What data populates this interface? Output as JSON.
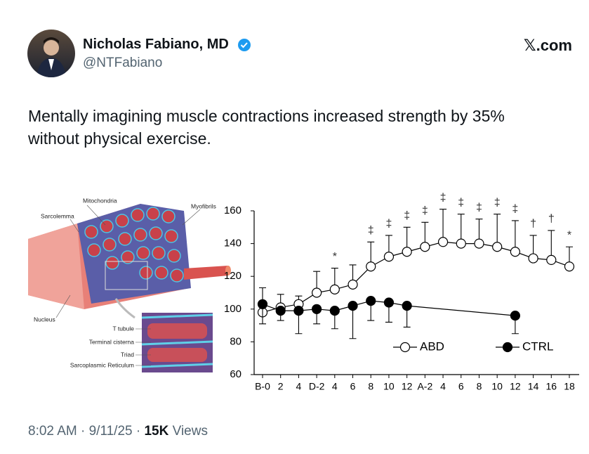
{
  "header": {
    "name": "Nicholas Fabiano, MD",
    "handle": "@NTFabiano",
    "brand": "𝕏.com"
  },
  "post": {
    "text_lines": [
      "Mentally imagining muscle contractions increased strength by 35%",
      "without physical exercise."
    ]
  },
  "illustration": {
    "labels": [
      "Mitochondria",
      "Sarcolemma",
      "Myofibrils",
      "Nucleus",
      "T tubule",
      "Terminal cisterna",
      "Triad",
      "Sarcoplasmic Reticulum"
    ]
  },
  "chart_data": {
    "type": "line",
    "categories": [
      "B-0",
      "2",
      "4",
      "D-2",
      "4",
      "6",
      "8",
      "10",
      "12",
      "A-2",
      "4",
      "6",
      "8",
      "10",
      "12",
      "14",
      "16",
      "18"
    ],
    "ylim": [
      60,
      160
    ],
    "yticks": [
      60,
      80,
      100,
      120,
      140,
      160
    ],
    "series": [
      {
        "name": "ABD",
        "color": "#000000",
        "marker": "open",
        "values": [
          98,
          101,
          103,
          110,
          112,
          115,
          126,
          132,
          135,
          138,
          141,
          140,
          140,
          138,
          135,
          131,
          130,
          126
        ],
        "errors": [
          15,
          8,
          5,
          13,
          13,
          12,
          15,
          13,
          15,
          15,
          20,
          18,
          15,
          20,
          19,
          14,
          18,
          12
        ]
      },
      {
        "name": "CTRL",
        "color": "#000000",
        "marker": "filled",
        "values": [
          103,
          99,
          99,
          100,
          99,
          102,
          105,
          104,
          102,
          null,
          null,
          null,
          null,
          null,
          96,
          null,
          null,
          null
        ],
        "errors": [
          12,
          6,
          14,
          9,
          11,
          20,
          12,
          12,
          13,
          null,
          null,
          null,
          null,
          null,
          11,
          null,
          null,
          null
        ]
      }
    ],
    "annotations": [
      null,
      null,
      null,
      null,
      "*",
      null,
      "‡",
      "‡",
      "‡",
      "‡",
      "‡",
      "‡",
      "‡",
      "‡",
      "‡",
      "†",
      "†",
      "*"
    ]
  },
  "footer": {
    "time": "8:02 AM",
    "separator": "·",
    "date": "9/11/25",
    "views_count": "15K",
    "views_label": "Views"
  }
}
